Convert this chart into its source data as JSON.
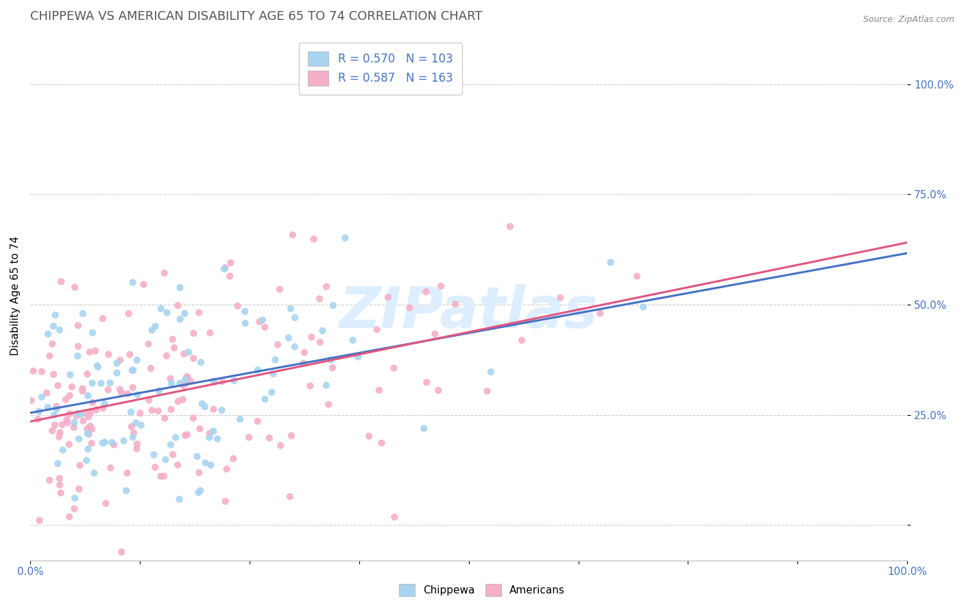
{
  "title": "CHIPPEWA VS AMERICAN DISABILITY AGE 65 TO 74 CORRELATION CHART",
  "source": "Source: ZipAtlas.com",
  "ylabel": "Disability Age 65 to 74",
  "xlabel": "",
  "xlim": [
    0.0,
    1.0
  ],
  "ylim": [
    -0.08,
    1.12
  ],
  "chippewa_R": 0.57,
  "chippewa_N": 103,
  "american_R": 0.587,
  "american_N": 163,
  "chippewa_color": "#a8d4f0",
  "american_color": "#f5afc8",
  "chippewa_line_color": "#4472c4",
  "american_line_color": "#e05580",
  "legend_text_color": "#4472c4",
  "title_color": "#555555",
  "source_color": "#888888",
  "background_color": "#ffffff",
  "grid_color": "#cccccc",
  "seed": 42,
  "chippewa_slope": 0.4,
  "chippewa_intercept": 0.245,
  "american_slope": 0.42,
  "american_intercept": 0.22,
  "watermark": "ZIPatlas",
  "watermark_color": "#ddeeff"
}
